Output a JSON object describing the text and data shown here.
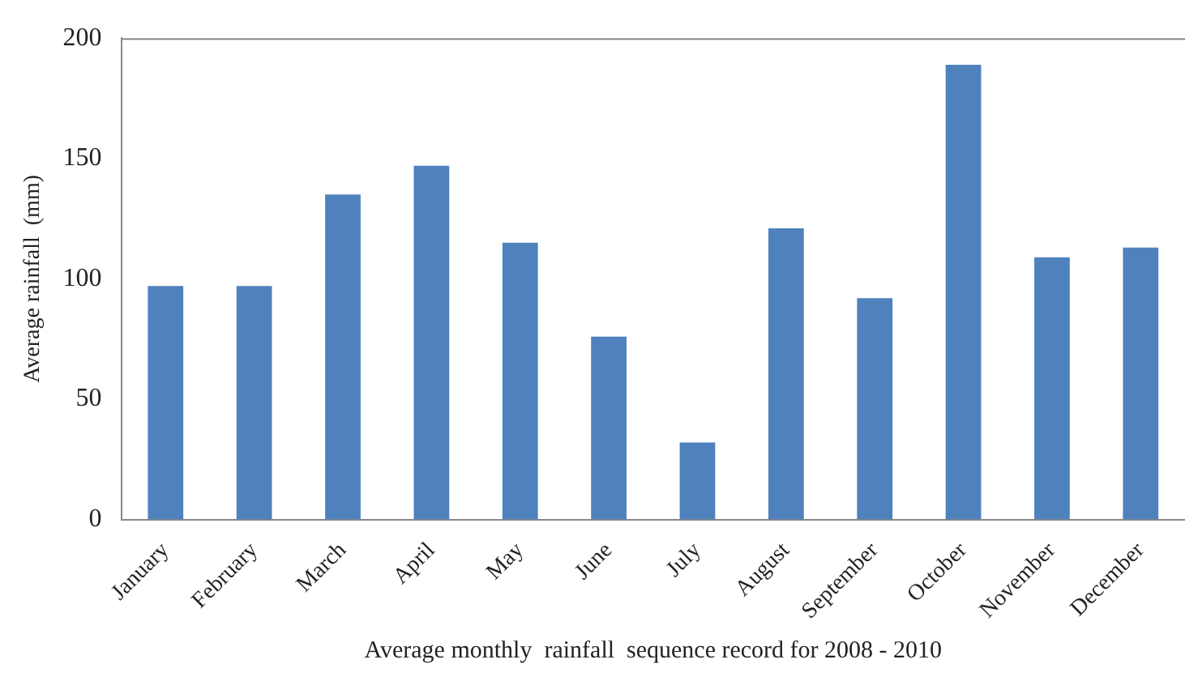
{
  "chart_data": {
    "type": "bar",
    "xlabel": "Average monthly  rainfall  sequence record for 2008 - 2010",
    "ylabel": "Average rainfall  (mm)",
    "categories": [
      "January",
      "February",
      "March",
      "April",
      "May",
      "June",
      "July",
      "August",
      "September",
      "October",
      "November",
      "December"
    ],
    "series": [
      {
        "color": "#4f81bd",
        "values": [
          97,
          97,
          135,
          147,
          115,
          76,
          32,
          121,
          92,
          189,
          109,
          113
        ]
      }
    ],
    "ylim": [
      0,
      200
    ],
    "yticks": [
      0,
      50,
      100,
      150,
      200
    ],
    "grid": false,
    "legend": false
  }
}
